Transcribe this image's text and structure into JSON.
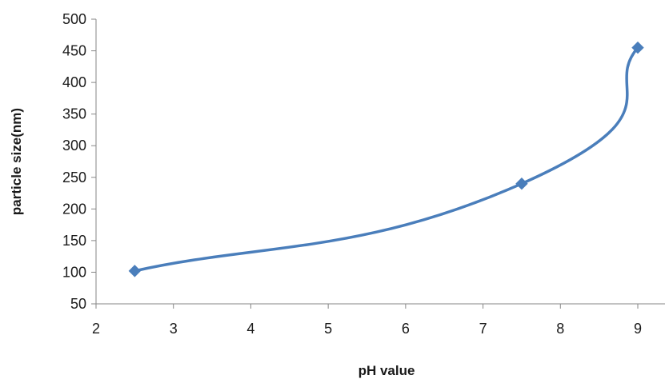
{
  "chart_data": {
    "type": "scatter",
    "title": "",
    "xlabel": "pH value",
    "ylabel": "particle size(nm)",
    "xlim": [
      2,
      9
    ],
    "ylim": [
      50,
      500
    ],
    "xticks": [
      2,
      3,
      4,
      5,
      6,
      7,
      8,
      9
    ],
    "yticks": [
      50,
      100,
      150,
      200,
      250,
      300,
      350,
      400,
      450,
      500
    ],
    "grid": false,
    "legend": "none",
    "smooth_line": true,
    "series": [
      {
        "x": [
          2.5,
          7.5,
          9
        ],
        "y": [
          102,
          240,
          455
        ],
        "color": "#4a7ebb"
      }
    ]
  }
}
